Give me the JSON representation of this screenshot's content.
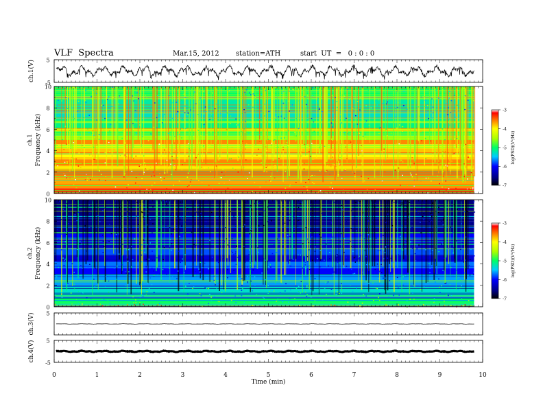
{
  "header": {
    "title": "VLF  Spectra",
    "date": "Mar.15, 2012",
    "station": "station=ATH",
    "start_ut": "start  UT  =   0 : 0 : 0"
  },
  "chart_data": {
    "type": "heatmap",
    "xlabel": "Time  (min)",
    "xlim": [
      0,
      10
    ],
    "x_ticks": [
      "0",
      "1",
      "2",
      "3",
      "4",
      "5",
      "6",
      "7",
      "8",
      "9",
      "10"
    ],
    "data_end_min": 9.8,
    "panels": [
      {
        "id": "ch1-waveform",
        "type": "line",
        "ylabel": "ch.1(V)",
        "ylim": [
          -5,
          5
        ],
        "y_ticks": [
          "5",
          "-5"
        ],
        "description_values": {
          "mean": 0,
          "amplitude_approx": 2.5
        }
      },
      {
        "id": "ch1-spectrogram",
        "type": "heatmap",
        "ylabel_top": "ch.1",
        "ylabel": "Frequency  (kHz)",
        "ylim": [
          0,
          10
        ],
        "y_ticks": [
          "0",
          "2",
          "4",
          "6",
          "8",
          "10"
        ],
        "colorbar": {
          "label": "log(PSD)(V²/Hz)",
          "range": [
            -7,
            -3
          ],
          "ticks": [
            "-3",
            "-4",
            "-5",
            "-6",
            "-7"
          ]
        },
        "bands_khz_level": [
          [
            0,
            0.5,
            -3.3
          ],
          [
            0.5,
            1.5,
            -3.7
          ],
          [
            1.5,
            2.2,
            -3.5
          ],
          [
            2.2,
            2.6,
            -3.9
          ],
          [
            2.6,
            3.2,
            -3.6
          ],
          [
            3.2,
            3.6,
            -4.0
          ],
          [
            3.6,
            4.2,
            -3.8
          ],
          [
            4.2,
            4.6,
            -4.2
          ],
          [
            4.6,
            5.0,
            -3.6
          ],
          [
            5.0,
            5.4,
            -4.6
          ],
          [
            5.4,
            5.8,
            -4.9
          ],
          [
            5.8,
            6.1,
            -4.3
          ],
          [
            6.1,
            7.0,
            -5.1
          ],
          [
            7.0,
            8.0,
            -5.3
          ],
          [
            8.0,
            9.0,
            -5.2
          ],
          [
            9.0,
            10.0,
            -5.0
          ]
        ]
      },
      {
        "id": "ch2-spectrogram",
        "type": "heatmap",
        "ylabel_top": "ch.2",
        "ylabel": "Frequency  (kHz)",
        "ylim": [
          0,
          10
        ],
        "y_ticks": [
          "0",
          "2",
          "4",
          "6",
          "8",
          "10"
        ],
        "colorbar": {
          "label": "log(PSD)(V²/Hz)",
          "range": [
            -7,
            -3
          ],
          "ticks": [
            "-3",
            "-4",
            "-5",
            "-6",
            "-7"
          ]
        },
        "bands_khz_level": [
          [
            0,
            0.3,
            -4.0
          ],
          [
            0.3,
            0.8,
            -5.0
          ],
          [
            0.8,
            2.0,
            -5.3
          ],
          [
            2.0,
            3.0,
            -5.6
          ],
          [
            3.0,
            3.6,
            -6.0
          ],
          [
            3.6,
            4.2,
            -5.7
          ],
          [
            4.2,
            4.8,
            -6.2
          ],
          [
            4.8,
            5.5,
            -5.8
          ],
          [
            5.5,
            6.0,
            -6.3
          ],
          [
            6.0,
            6.8,
            -6.0
          ],
          [
            6.8,
            8.0,
            -6.5
          ],
          [
            8.0,
            10.0,
            -6.6
          ]
        ]
      },
      {
        "id": "ch3-waveform",
        "type": "line",
        "ylabel": "ch.3(V)",
        "ylim": [
          -5,
          5
        ],
        "y_ticks": [
          "5"
        ],
        "description_values": {
          "mean": 0,
          "amplitude_approx": 0.1
        }
      },
      {
        "id": "ch4-waveform",
        "type": "line",
        "ylabel": "ch.4(V)",
        "ylim": [
          -5,
          5
        ],
        "y_ticks": [
          "5",
          "-5"
        ],
        "description_values": {
          "mean": 0,
          "amplitude_approx": 0.3
        }
      }
    ]
  }
}
